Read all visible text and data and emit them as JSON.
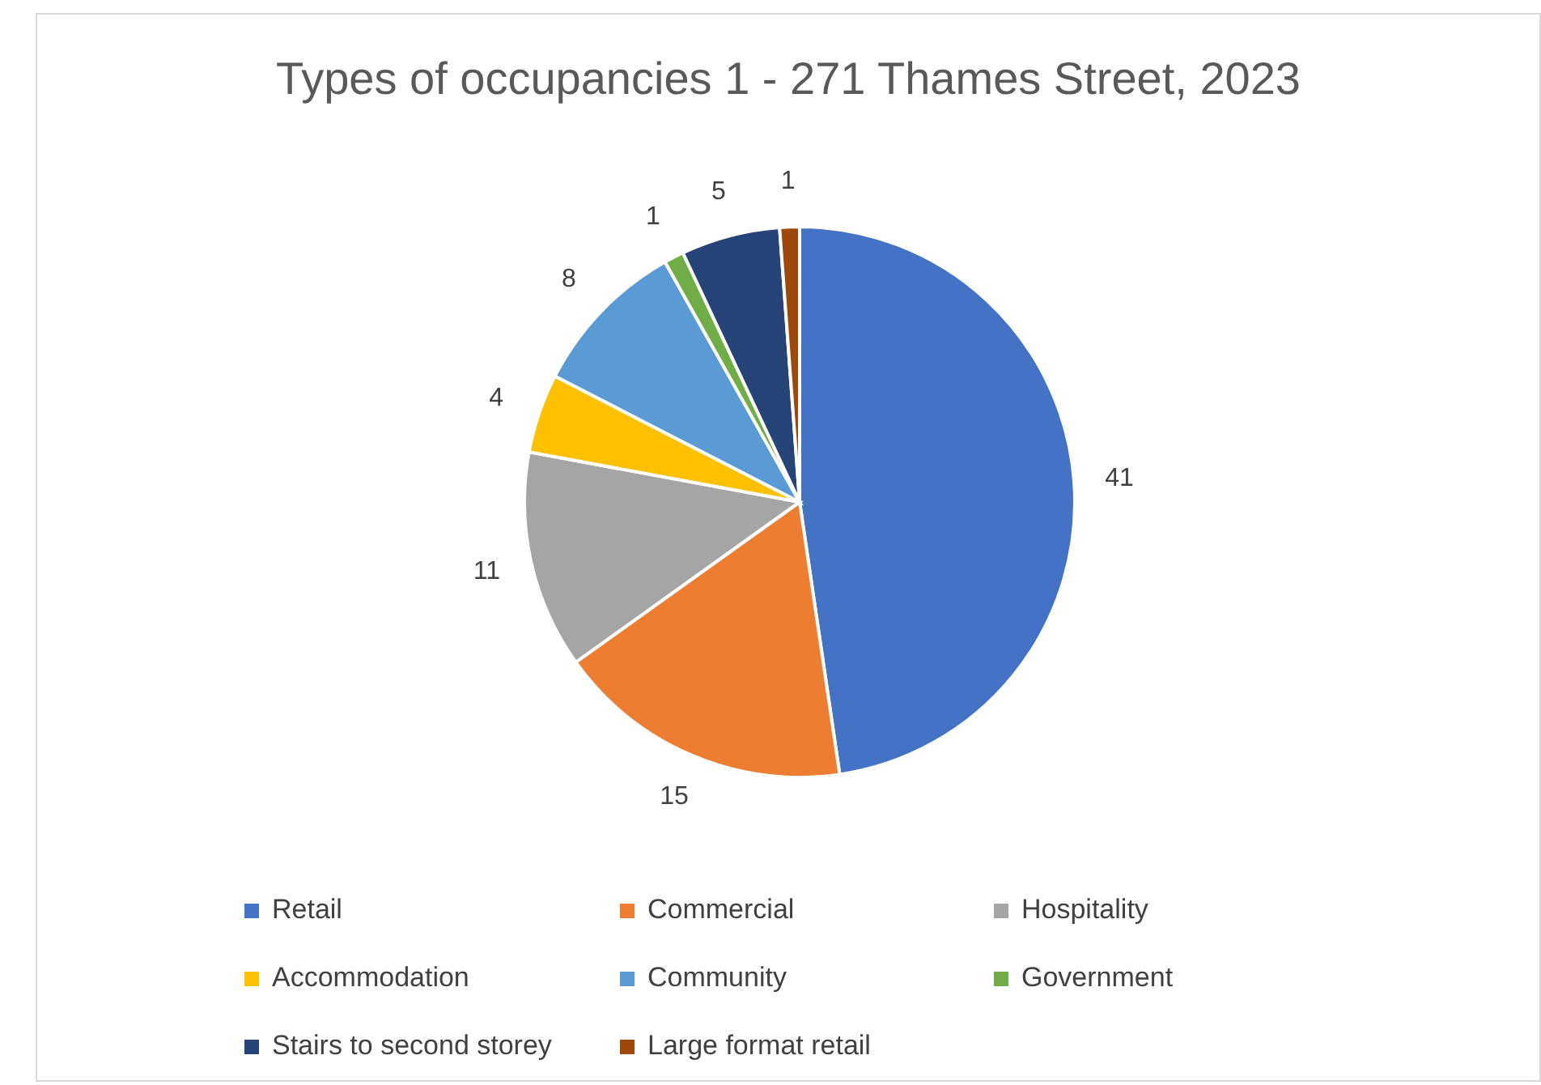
{
  "chart_data": {
    "type": "pie",
    "title": "Types of occupancies 1 - 271 Thames Street, 2023",
    "categories": [
      "Retail",
      "Commercial",
      "Hospitality",
      "Accommodation",
      "Community",
      "Government",
      "Stairs to second storey",
      "Large format retail"
    ],
    "values": [
      41,
      15,
      11,
      4,
      8,
      1,
      5,
      1
    ],
    "colors": [
      "#4472c4",
      "#ed7d31",
      "#a5a5a5",
      "#ffc000",
      "#5b9bd5",
      "#70ad47",
      "#264478",
      "#9e480e"
    ],
    "data_labels": true,
    "legend": "bottom"
  }
}
